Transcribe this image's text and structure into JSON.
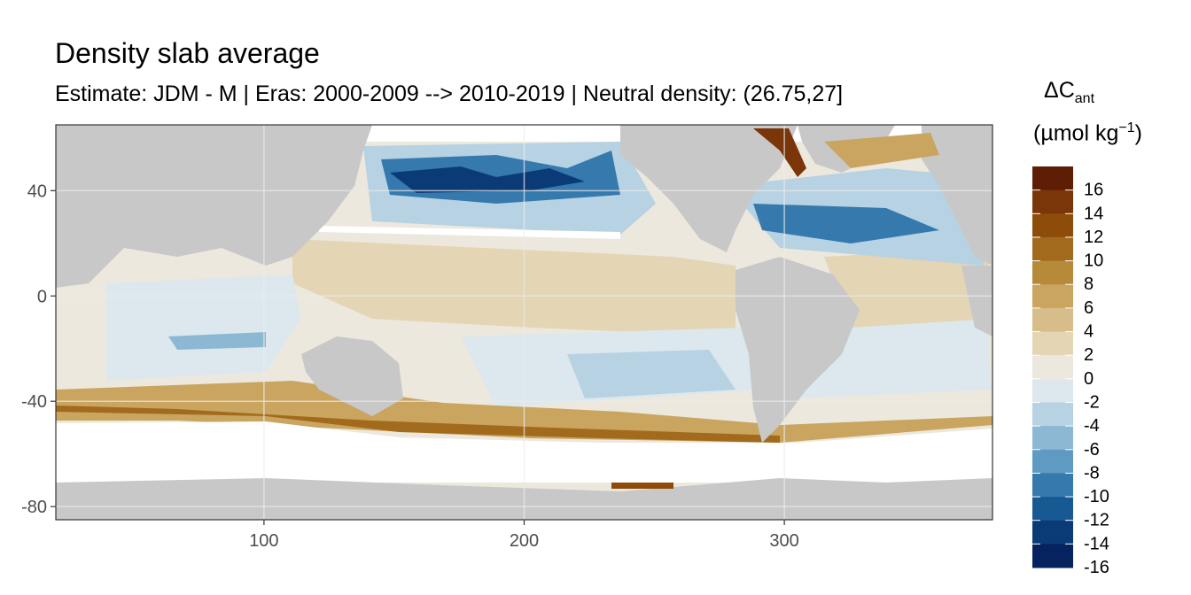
{
  "title": "Density slab average",
  "subtitle": "Estimate: JDM - M | Eras: 2000-2009 --> 2010-2019 | Neutral density: (26.75,27]",
  "legend": {
    "title_delta": "ΔC",
    "title_sub": "ant",
    "title_unit_open": "(µmol kg",
    "title_unit_sup": "−1",
    "title_unit_close": ")",
    "bins": [
      {
        "label": "16",
        "color": "#5e1e06"
      },
      {
        "label": "14",
        "color": "#7a3508"
      },
      {
        "label": "12",
        "color": "#8e4c0b"
      },
      {
        "label": "10",
        "color": "#a26a1c"
      },
      {
        "label": "8",
        "color": "#b78a3a"
      },
      {
        "label": "6",
        "color": "#c9a560"
      },
      {
        "label": "4",
        "color": "#d7bd89"
      },
      {
        "label": "2",
        "color": "#e4d5b5"
      },
      {
        "label": "0",
        "color": "#ede8dd"
      },
      {
        "label": "-2",
        "color": "#dce8ee"
      },
      {
        "label": "-4",
        "color": "#b6d2e3"
      },
      {
        "label": "-6",
        "color": "#8cb8d4"
      },
      {
        "label": "-8",
        "color": "#5f9ac3"
      },
      {
        "label": "-10",
        "color": "#3579ad"
      },
      {
        "label": "-12",
        "color": "#175a93"
      },
      {
        "label": "-14",
        "color": "#0b3b76"
      },
      {
        "label": "-16",
        "color": "#062360"
      }
    ]
  },
  "axes": {
    "x_ticks": [
      100,
      200,
      300
    ],
    "y_ticks": [
      40,
      0,
      -40,
      -80
    ],
    "xlim": [
      20,
      380
    ],
    "ylim": [
      -85,
      65
    ]
  },
  "colors": {
    "land": "#c8c8c8",
    "no_data": "#ffffff",
    "grid": "#ebebeb",
    "panel_border": "#333333"
  }
}
